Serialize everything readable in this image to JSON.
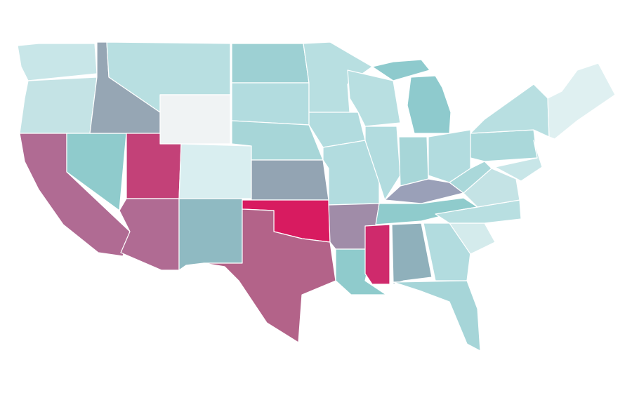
{
  "map": {
    "regions": [
      {
        "color": "#c8e6e8"
      },
      {
        "color": "#c4e3e5"
      },
      {
        "color": "#b06b93"
      },
      {
        "color": "#8fcbcc"
      },
      {
        "color": "#96a6b4"
      },
      {
        "color": "#b8dfe1"
      },
      {
        "color": "#f0f3f4"
      },
      {
        "color": "#c34178"
      },
      {
        "color": "#d9eef0"
      },
      {
        "color": "#b06b93"
      },
      {
        "color": "#8fbac2"
      },
      {
        "color": "#9dd0d3"
      },
      {
        "color": "#b2dcdf"
      },
      {
        "color": "#a7d6d8"
      },
      {
        "color": "#93a4b3"
      },
      {
        "color": "#d81b60"
      },
      {
        "color": "#b36389"
      },
      {
        "color": "#b8dfe1"
      },
      {
        "color": "#b2dcdf"
      },
      {
        "color": "#b2dcdf"
      },
      {
        "color": "#a08ca8"
      },
      {
        "color": "#8fcbcc"
      },
      {
        "color": "#b8dfe1"
      },
      {
        "color": "#b2dcdf"
      },
      {
        "color": "#8ecacd"
      },
      {
        "color": "#8ecacd"
      },
      {
        "color": "#a7d6d8"
      },
      {
        "color": "#b2dcdf"
      },
      {
        "color": "#9aa0b8"
      },
      {
        "color": "#8fcbcc"
      },
      {
        "color": "#cf2a6c"
      },
      {
        "color": "#8fb0bb"
      },
      {
        "color": "#b2dcdf"
      },
      {
        "color": "#a6d5d8"
      },
      {
        "color": "#d4ebec"
      },
      {
        "color": "#b8dfe1"
      },
      {
        "color": "#c4e3e5"
      },
      {
        "color": "#aad8da"
      },
      {
        "color": "#aad8da"
      },
      {
        "color": "#b8dfe1"
      },
      {
        "color": "#c8e6e8"
      },
      {
        "color": "#dff0f1"
      }
    ]
  }
}
